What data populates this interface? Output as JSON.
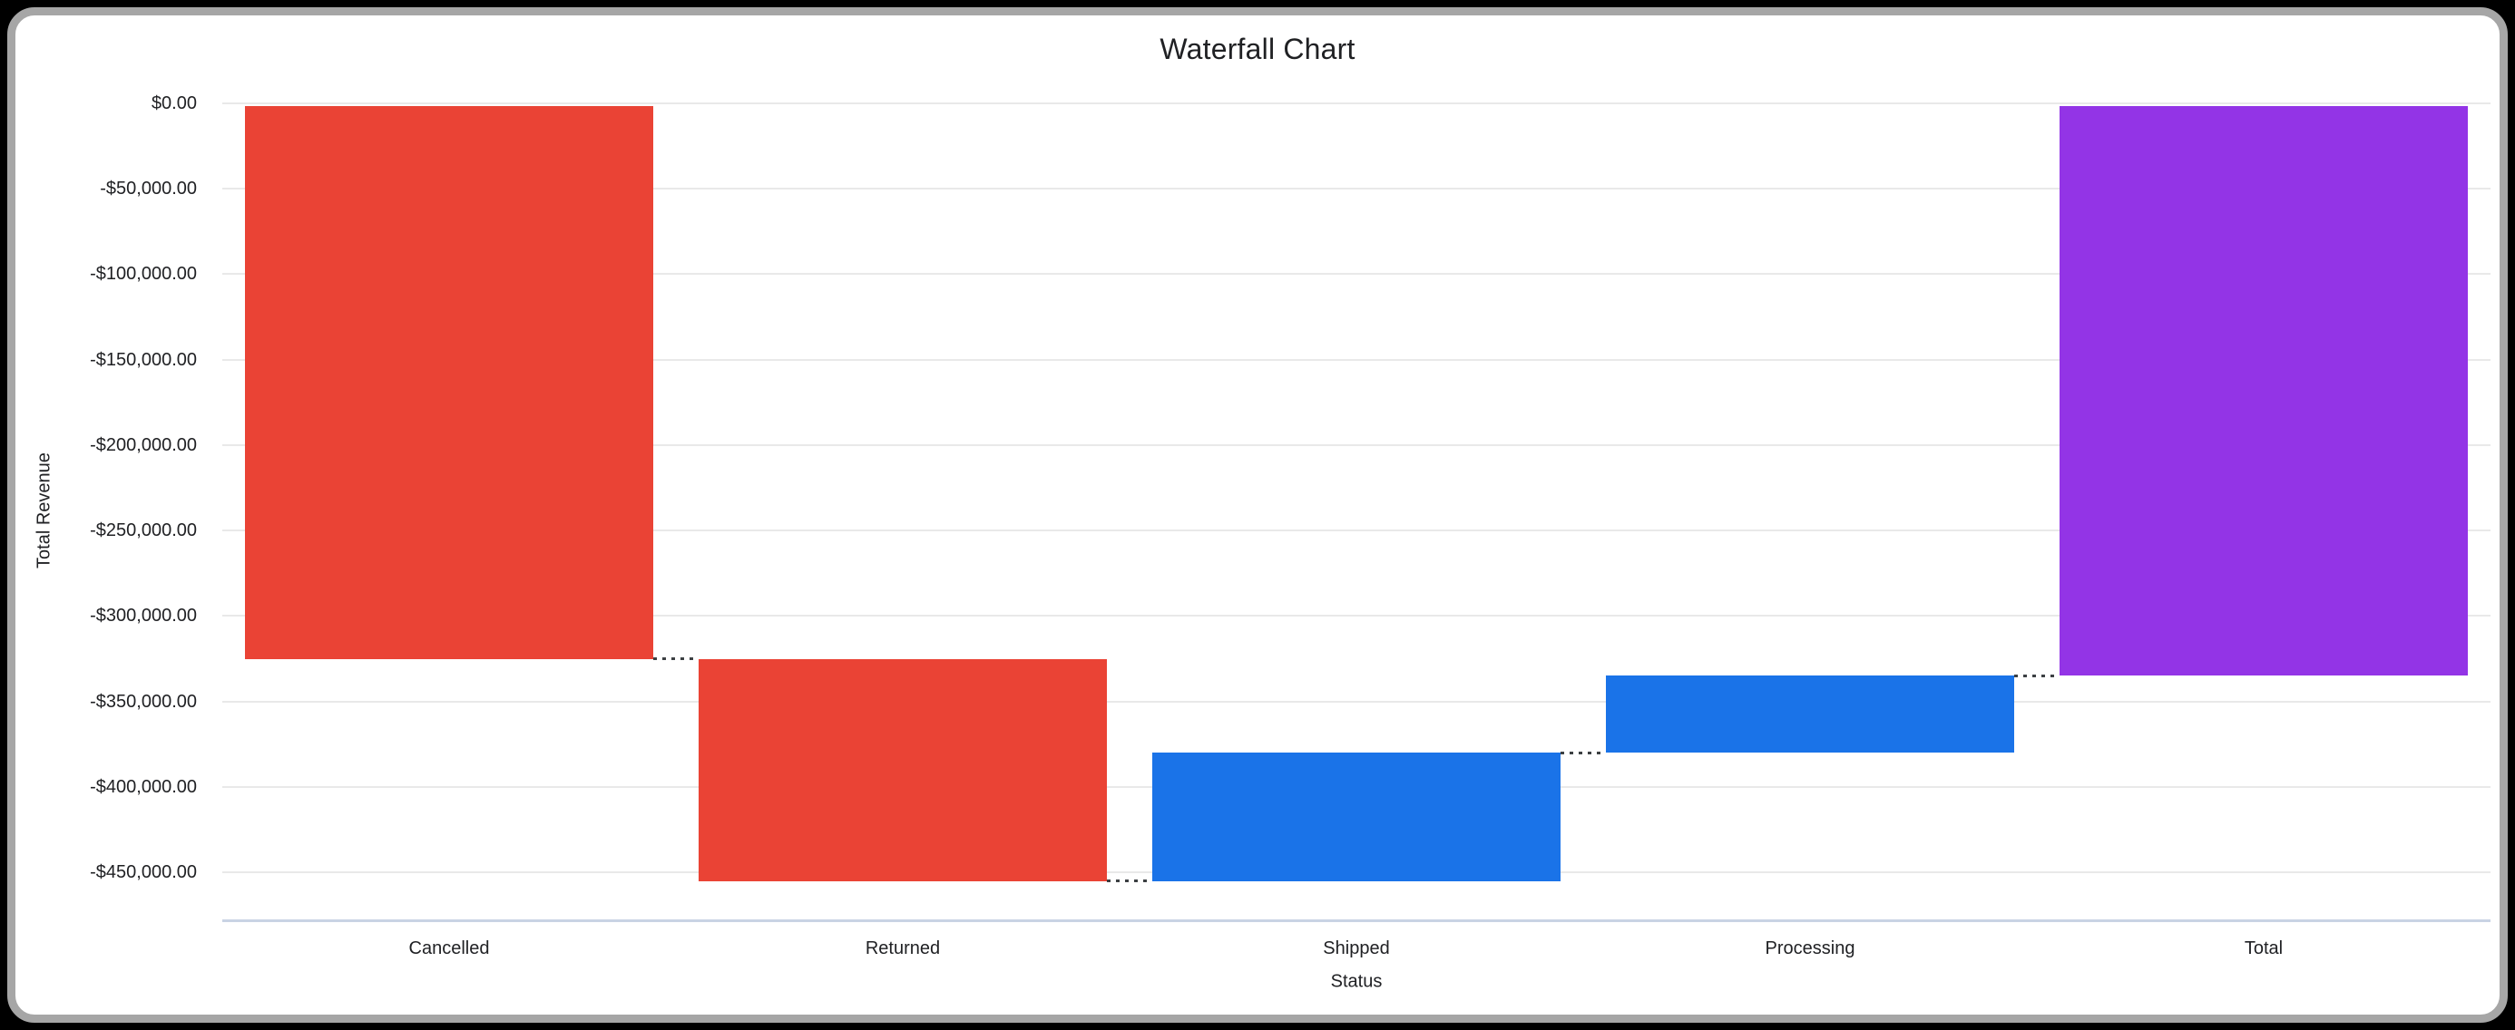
{
  "frame": {
    "page_background": "#000000",
    "card_background": "#ffffff",
    "border_color": "#a6a6a6"
  },
  "chart_data": {
    "type": "waterfall",
    "title": "Waterfall Chart",
    "xlabel": "Status",
    "ylabel": "Total Revenue",
    "categories": [
      "Cancelled",
      "Returned",
      "Shipped",
      "Processing",
      "Total"
    ],
    "values": [
      -325000,
      -130000,
      75000,
      45000,
      -335000
    ],
    "bar_roles": [
      "decrease",
      "decrease",
      "increase",
      "increase",
      "total"
    ],
    "cumulative_spans": [
      [
        0,
        -325000
      ],
      [
        -325000,
        -455000
      ],
      [
        -455000,
        -380000
      ],
      [
        -380000,
        -335000
      ],
      [
        0,
        -335000
      ]
    ],
    "colors": {
      "decrease": "#EA4335",
      "increase": "#1A73E8",
      "total": "#9334E6",
      "connector": "#3C4043",
      "gridline": "#E9E9E9",
      "axis_line": "#C9D3E4",
      "text": "#202124"
    },
    "y_ticks": [
      {
        "value": 0,
        "label": "$0.00"
      },
      {
        "value": -50000,
        "label": "-$50,000.00"
      },
      {
        "value": -100000,
        "label": "-$100,000.00"
      },
      {
        "value": -150000,
        "label": "-$150,000.00"
      },
      {
        "value": -200000,
        "label": "-$200,000.00"
      },
      {
        "value": -250000,
        "label": "-$250,000.00"
      },
      {
        "value": -300000,
        "label": "-$300,000.00"
      },
      {
        "value": -350000,
        "label": "-$350,000.00"
      },
      {
        "value": -400000,
        "label": "-$400,000.00"
      },
      {
        "value": -450000,
        "label": "-$450,000.00"
      }
    ],
    "ylim": [
      -478000,
      0
    ],
    "grid": true,
    "legend": false,
    "connector_style": "dotted"
  }
}
